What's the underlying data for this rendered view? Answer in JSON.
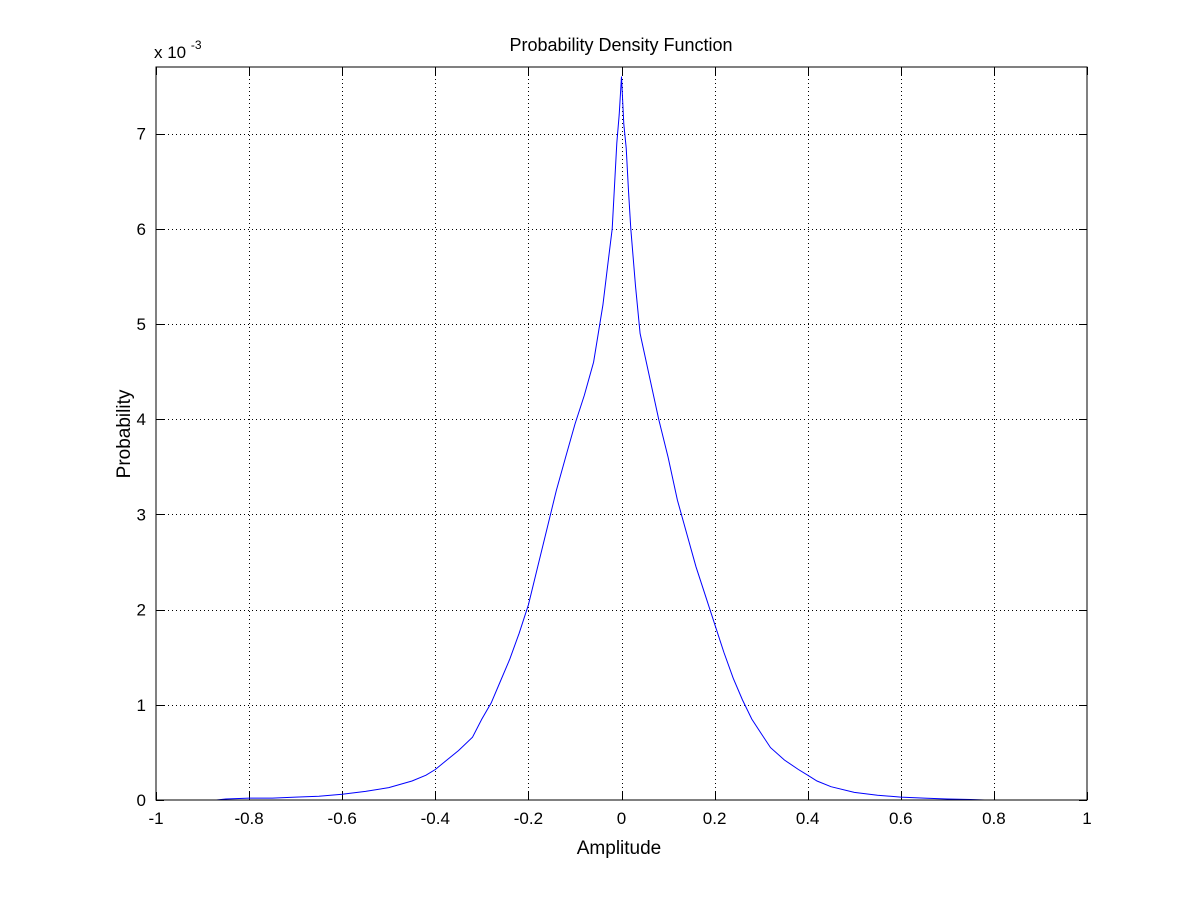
{
  "chart_data": {
    "type": "line",
    "title": "Probability Density Function",
    "xlabel": "Amplitude",
    "ylabel": "Probability",
    "y_exponent_label": {
      "base": "x 10",
      "exponent": "-3"
    },
    "xlim": [
      -1,
      1
    ],
    "ylim": [
      0,
      7.7
    ],
    "y_unit_multiplier": 0.001,
    "x_ticks": [
      -1,
      -0.8,
      -0.6,
      -0.4,
      -0.2,
      0,
      0.2,
      0.4,
      0.6,
      0.8,
      1
    ],
    "x_tick_labels": [
      "-1",
      "-0.8",
      "-0.6",
      "-0.4",
      "-0.2",
      "0",
      "0.2",
      "0.4",
      "0.6",
      "0.8",
      "1"
    ],
    "y_ticks": [
      0,
      1,
      2,
      3,
      4,
      5,
      6,
      7
    ],
    "y_tick_labels": [
      "0",
      "1",
      "2",
      "3",
      "4",
      "5",
      "6",
      "7"
    ],
    "grid": true,
    "series_color": "#0000ff",
    "series": [
      {
        "x": [
          -0.87,
          -0.85,
          -0.8,
          -0.75,
          -0.7,
          -0.65,
          -0.6,
          -0.55,
          -0.5,
          -0.45,
          -0.42,
          -0.4,
          -0.38,
          -0.35,
          -0.32,
          -0.3,
          -0.28,
          -0.26,
          -0.24,
          -0.22,
          -0.2,
          -0.18,
          -0.16,
          -0.14,
          -0.12,
          -0.1,
          -0.08,
          -0.06,
          -0.04,
          -0.03,
          -0.02,
          -0.015,
          -0.01,
          -0.005,
          0,
          0.005,
          0.01,
          0.015,
          0.02,
          0.03,
          0.04,
          0.06,
          0.08,
          0.1,
          0.12,
          0.14,
          0.16,
          0.18,
          0.2,
          0.22,
          0.24,
          0.26,
          0.28,
          0.3,
          0.32,
          0.35,
          0.38,
          0.4,
          0.42,
          0.45,
          0.5,
          0.55,
          0.6,
          0.65,
          0.7,
          0.75,
          0.78,
          0.8
        ],
        "y": [
          0.0,
          0.01,
          0.02,
          0.02,
          0.03,
          0.04,
          0.06,
          0.09,
          0.13,
          0.2,
          0.26,
          0.32,
          0.4,
          0.52,
          0.66,
          0.85,
          1.02,
          1.25,
          1.48,
          1.75,
          2.05,
          2.45,
          2.85,
          3.25,
          3.6,
          3.95,
          4.25,
          4.6,
          5.2,
          5.6,
          6.0,
          6.45,
          6.9,
          7.2,
          7.6,
          7.1,
          6.85,
          6.4,
          6.0,
          5.4,
          4.9,
          4.45,
          4.0,
          3.6,
          3.15,
          2.8,
          2.45,
          2.15,
          1.85,
          1.55,
          1.28,
          1.05,
          0.85,
          0.7,
          0.55,
          0.42,
          0.32,
          0.26,
          0.2,
          0.14,
          0.08,
          0.05,
          0.03,
          0.02,
          0.01,
          0.005,
          0.0,
          0.0
        ]
      }
    ]
  }
}
